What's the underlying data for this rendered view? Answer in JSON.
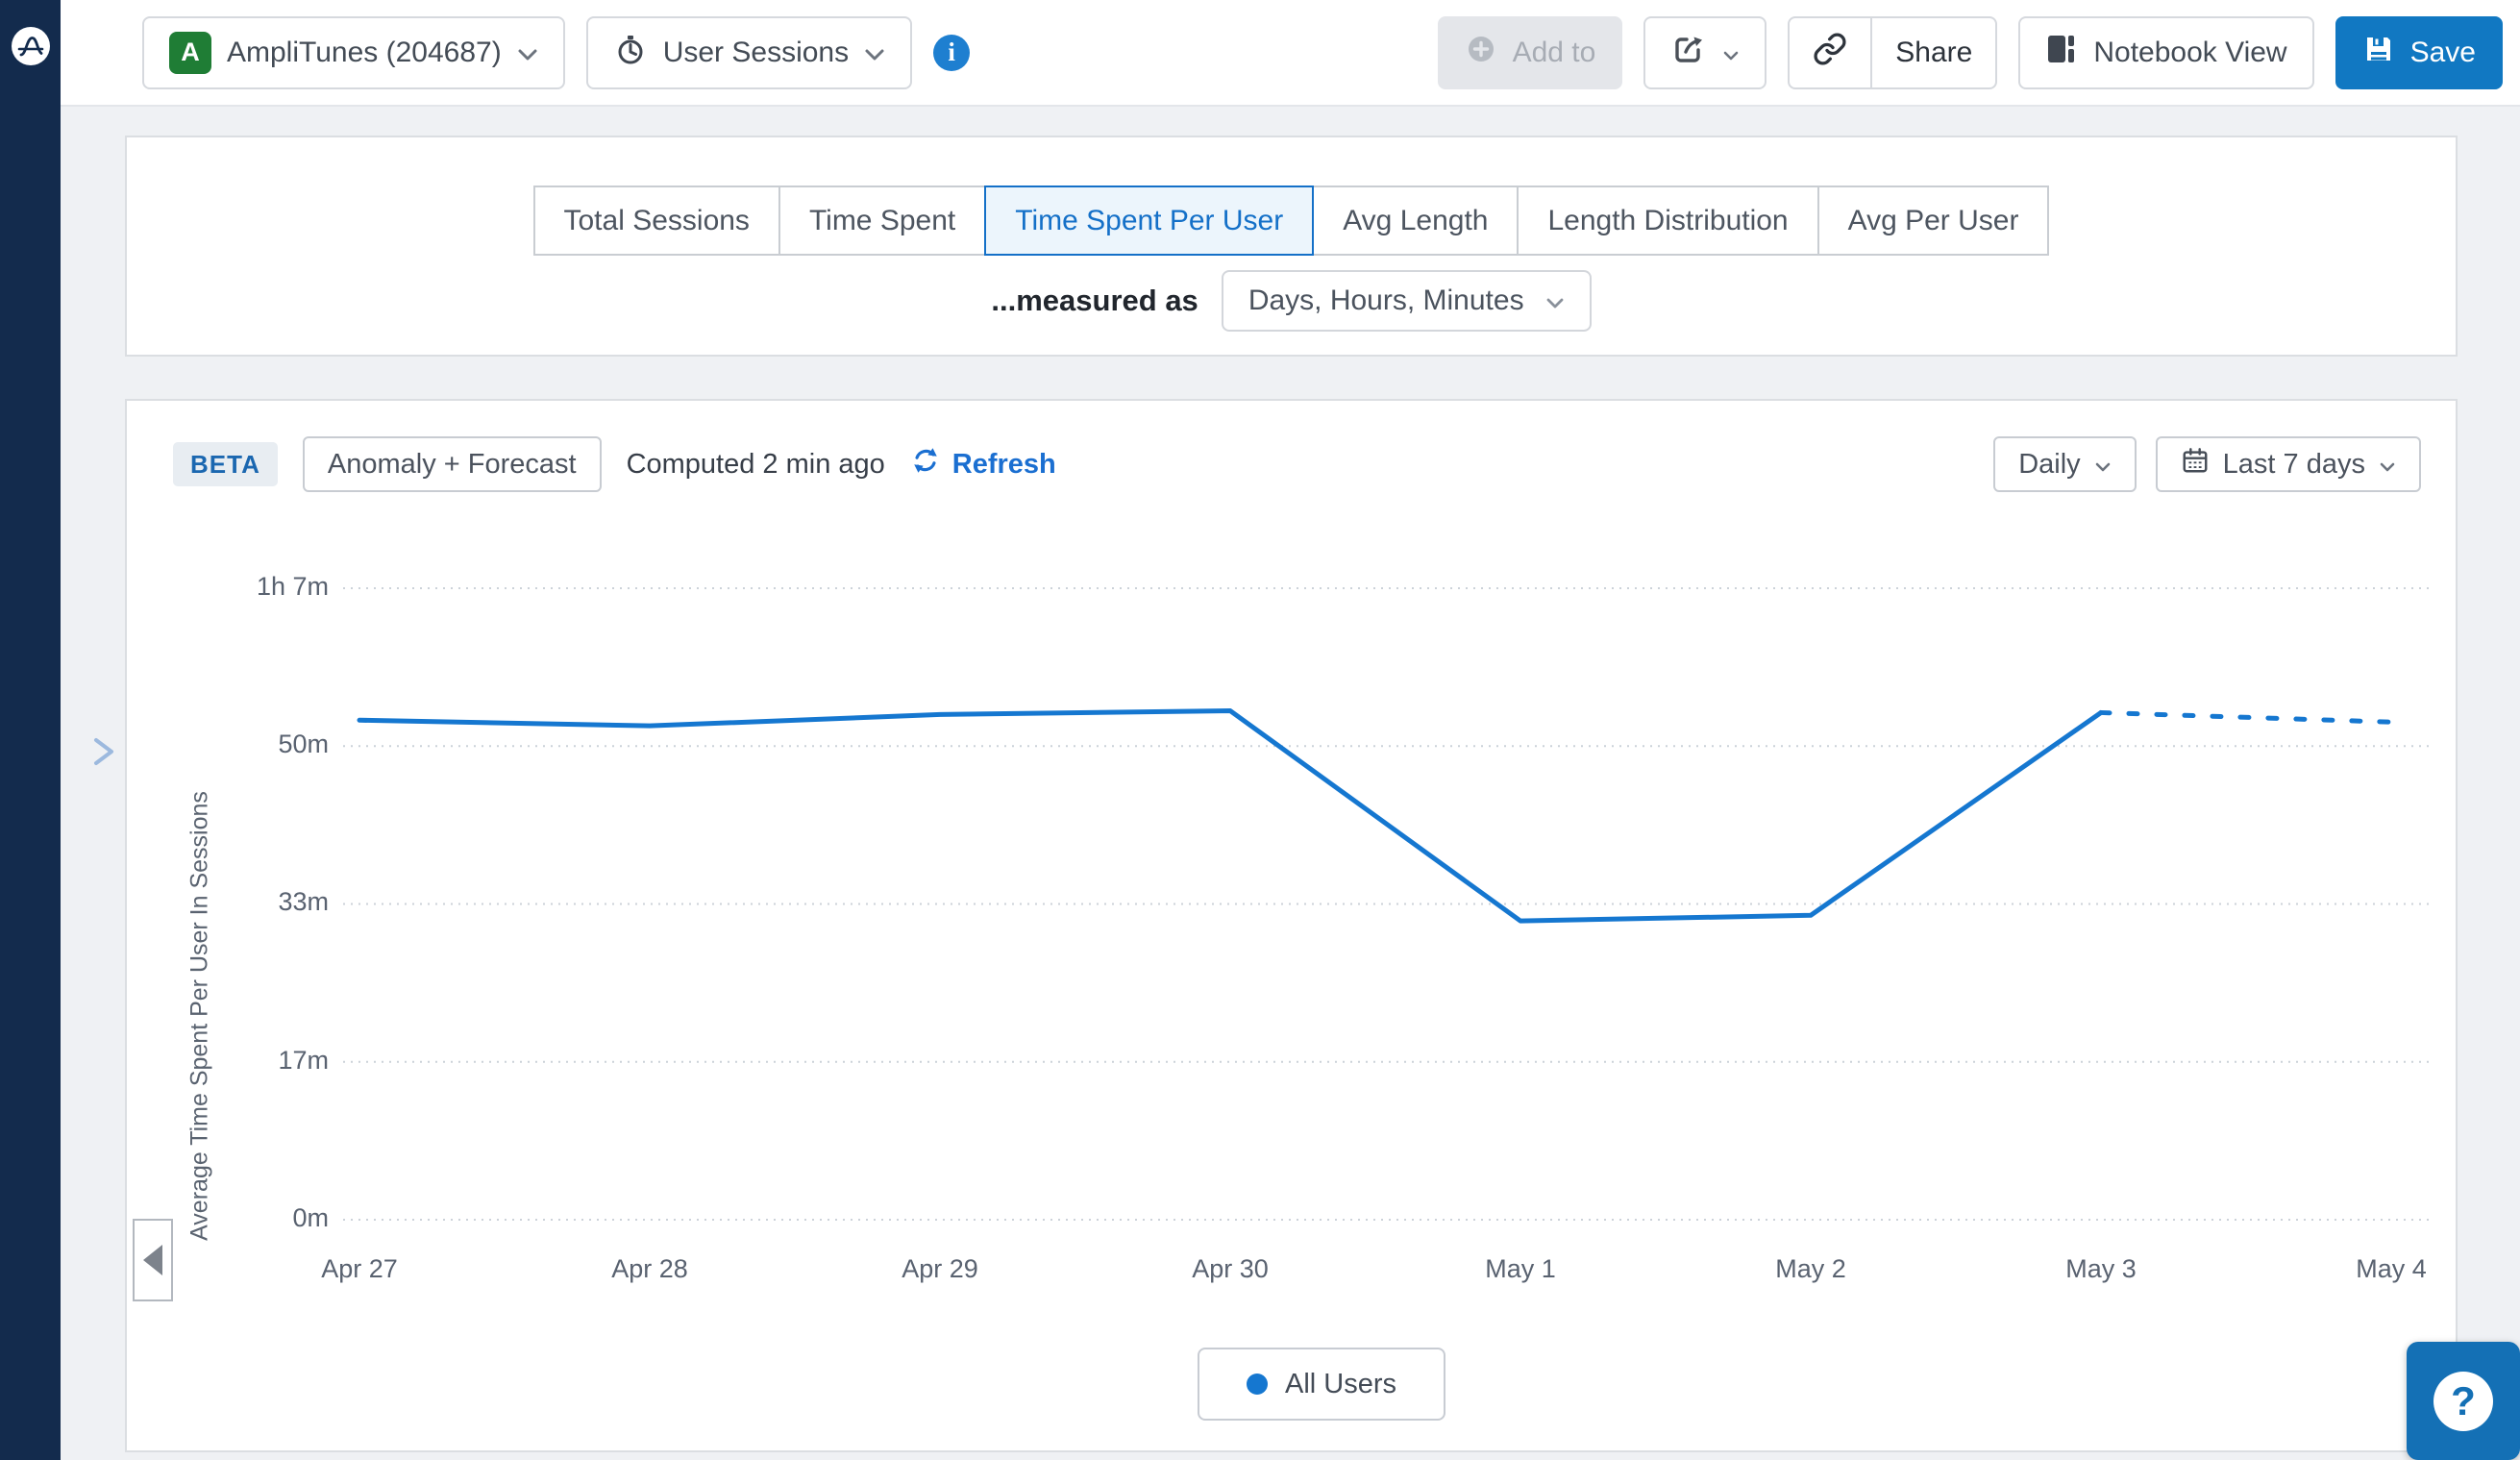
{
  "header": {
    "project": {
      "badge": "A",
      "name": "AmpliTunes (204687)"
    },
    "analysis": {
      "label": "User Sessions"
    },
    "actions": {
      "add_to": "Add to",
      "share": "Share",
      "notebook_view": "Notebook View",
      "save": "Save"
    }
  },
  "tabs": {
    "items": [
      {
        "label": "Total Sessions",
        "active": false
      },
      {
        "label": "Time Spent",
        "active": false
      },
      {
        "label": "Time Spent Per User",
        "active": true
      },
      {
        "label": "Avg Length",
        "active": false
      },
      {
        "label": "Length Distribution",
        "active": false
      },
      {
        "label": "Avg Per User",
        "active": false
      }
    ],
    "measured_as_label": "...measured as",
    "measured_as_value": "Days, Hours, Minutes"
  },
  "chart_panel": {
    "beta_badge": "BETA",
    "anomaly_button": "Anomaly + Forecast",
    "computed_text": "Computed 2 min ago",
    "refresh_label": "Refresh",
    "granularity": "Daily",
    "date_range": "Last 7 days",
    "legend": {
      "label": "All Users",
      "color": "#1577d0"
    }
  },
  "chart_data": {
    "type": "line",
    "ylabel": "Average Time Spent Per User In Sessions",
    "categories": [
      "Apr 27",
      "Apr 28",
      "Apr 29",
      "Apr 30",
      "May 1",
      "May 2",
      "May 3",
      "May 4"
    ],
    "y_ticks": [
      {
        "label": "1h 7m",
        "minutes": 67,
        "pos": 67
      },
      {
        "label": "50m",
        "minutes": 50,
        "pos": 50.25
      },
      {
        "label": "33m",
        "minutes": 33,
        "pos": 33.5
      },
      {
        "label": "17m",
        "minutes": 17,
        "pos": 16.75
      },
      {
        "label": "0m",
        "minutes": 0,
        "pos": 0
      }
    ],
    "ylim": [
      0,
      67
    ],
    "series": [
      {
        "name": "All Users",
        "style": "solid",
        "color": "#1577d0",
        "values": [
          53,
          52.4,
          53.6,
          54,
          31.7,
          32.3,
          53.8,
          null
        ]
      },
      {
        "name": "All Users (forecast)",
        "style": "dotted",
        "color": "#1577d0",
        "values": [
          null,
          null,
          null,
          null,
          null,
          null,
          53.8,
          52.8
        ]
      }
    ],
    "grid": "horizontal-dotted",
    "legend_position": "bottom-center"
  },
  "help_button": {
    "label": "?"
  },
  "colors": {
    "accent_blue": "#1470c8",
    "save_blue": "#1178c2",
    "line_blue": "#1577d0",
    "sidebar_navy": "#132b4d",
    "badge_green": "#1f7d35",
    "page_bg": "#eff1f4"
  },
  "icons": {
    "logo": "amplitude-wave",
    "expand": "chevron-right",
    "analysis": "session-stopwatch",
    "info": "info-circle",
    "add_to": "plus-circle",
    "export": "share-arrow-box",
    "link": "chain-link",
    "notebook": "notebook",
    "save": "floppy-disk",
    "refresh": "refresh-arrows",
    "calendar": "calendar",
    "collapse": "triangle-left",
    "help": "question-mark"
  }
}
